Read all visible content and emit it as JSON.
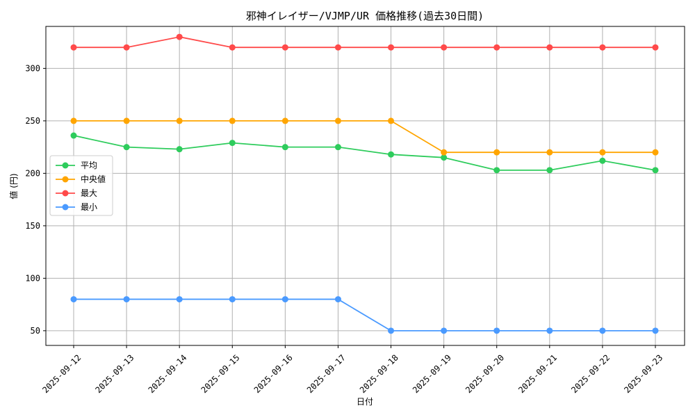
{
  "chart_data": {
    "type": "line",
    "title": "邪神イレイザー/VJMP/UR 価格推移(過去30日間)",
    "xlabel": "日付",
    "ylabel": "値 (円)",
    "categories": [
      "2025-09-12",
      "2025-09-13",
      "2025-09-14",
      "2025-09-15",
      "2025-09-16",
      "2025-09-17",
      "2025-09-18",
      "2025-09-19",
      "2025-09-20",
      "2025-09-21",
      "2025-09-22",
      "2025-09-23"
    ],
    "ylim": [
      36,
      340
    ],
    "yticks": [
      50,
      100,
      150,
      200,
      250,
      300
    ],
    "grid": true,
    "legend_position": "center-left",
    "series": [
      {
        "name": "平均",
        "color": "#2ecc5c",
        "values": [
          236,
          225,
          223,
          229,
          225,
          225,
          218,
          215,
          203,
          203,
          212,
          203
        ]
      },
      {
        "name": "中央値",
        "color": "#ffa500",
        "values": [
          250,
          250,
          250,
          250,
          250,
          250,
          250,
          220,
          220,
          220,
          220,
          220
        ]
      },
      {
        "name": "最大",
        "color": "#ff4a4a",
        "values": [
          320,
          320,
          330,
          320,
          320,
          320,
          320,
          320,
          320,
          320,
          320,
          320
        ]
      },
      {
        "name": "最小",
        "color": "#4a9aff",
        "values": [
          80,
          80,
          80,
          80,
          80,
          80,
          50,
          50,
          50,
          50,
          50,
          50
        ]
      }
    ]
  }
}
